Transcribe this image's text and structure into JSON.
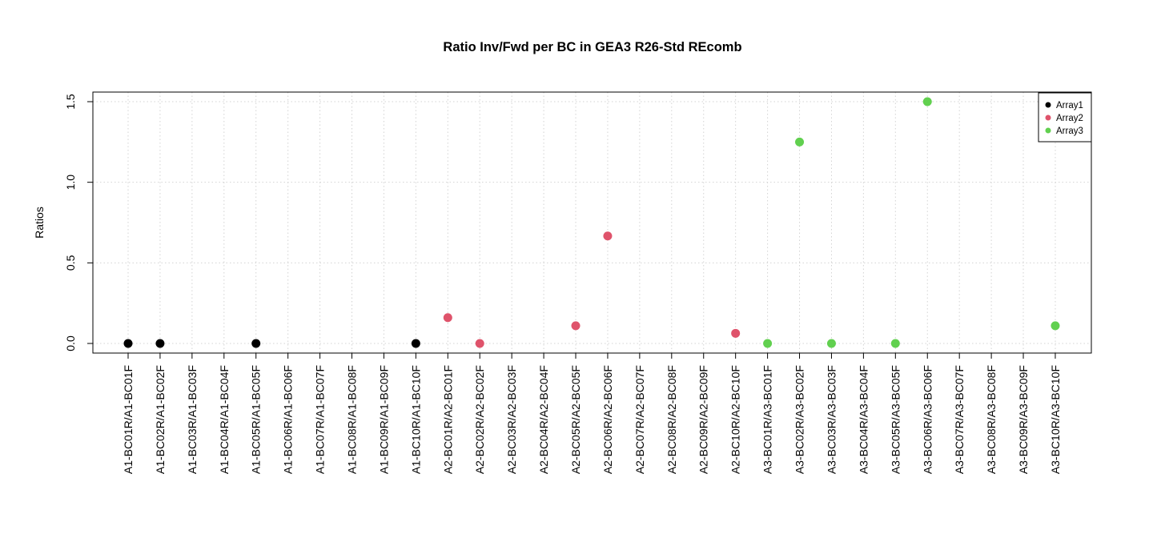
{
  "chart_data": {
    "type": "scatter",
    "title": "Ratio Inv/Fwd per BC in GEA3 R26-Std REcomb",
    "xlabel": "",
    "ylabel": "Ratios",
    "ylim": [
      -0.04,
      1.56
    ],
    "yticks": [
      0.0,
      0.5,
      1.0,
      1.5
    ],
    "ytick_labels": [
      "0.0",
      "0.5",
      "1.0",
      "1.5"
    ],
    "grid": true,
    "legend_position": "top-right",
    "categories": [
      "A1-BC01R/A1-BC01F",
      "A1-BC02R/A1-BC02F",
      "A1-BC03R/A1-BC03F",
      "A1-BC04R/A1-BC04F",
      "A1-BC05R/A1-BC05F",
      "A1-BC06R/A1-BC06F",
      "A1-BC07R/A1-BC07F",
      "A1-BC08R/A1-BC08F",
      "A1-BC09R/A1-BC09F",
      "A1-BC10R/A1-BC10F",
      "A2-BC01R/A2-BC01F",
      "A2-BC02R/A2-BC02F",
      "A2-BC03R/A2-BC03F",
      "A2-BC04R/A2-BC04F",
      "A2-BC05R/A2-BC05F",
      "A2-BC06R/A2-BC06F",
      "A2-BC07R/A2-BC07F",
      "A2-BC08R/A2-BC08F",
      "A2-BC09R/A2-BC09F",
      "A2-BC10R/A2-BC10F",
      "A3-BC01R/A3-BC01F",
      "A3-BC02R/A3-BC02F",
      "A3-BC03R/A3-BC03F",
      "A3-BC04R/A3-BC04F",
      "A3-BC05R/A3-BC05F",
      "A3-BC06R/A3-BC06F",
      "A3-BC07R/A3-BC07F",
      "A3-BC08R/A3-BC08F",
      "A3-BC09R/A3-BC09F",
      "A3-BC10R/A3-BC10F"
    ],
    "series": [
      {
        "name": "Array1",
        "color": "#000000",
        "values": [
          0,
          0,
          null,
          null,
          0,
          null,
          null,
          null,
          null,
          0,
          null,
          null,
          null,
          null,
          null,
          null,
          null,
          null,
          null,
          null,
          null,
          null,
          null,
          null,
          null,
          null,
          null,
          null,
          null,
          null
        ]
      },
      {
        "name": "Array2",
        "color": "#DF536B",
        "values": [
          null,
          null,
          null,
          null,
          null,
          null,
          null,
          null,
          null,
          null,
          0.16,
          0,
          null,
          null,
          0.11,
          0.667,
          null,
          null,
          null,
          0.063,
          null,
          null,
          null,
          null,
          null,
          null,
          null,
          null,
          null,
          null
        ]
      },
      {
        "name": "Array3",
        "color": "#61D04F",
        "values": [
          null,
          null,
          null,
          null,
          null,
          null,
          null,
          null,
          null,
          null,
          null,
          null,
          null,
          null,
          null,
          null,
          null,
          null,
          null,
          null,
          0,
          1.25,
          0,
          null,
          0,
          1.5,
          null,
          null,
          null,
          0.11
        ]
      }
    ]
  }
}
